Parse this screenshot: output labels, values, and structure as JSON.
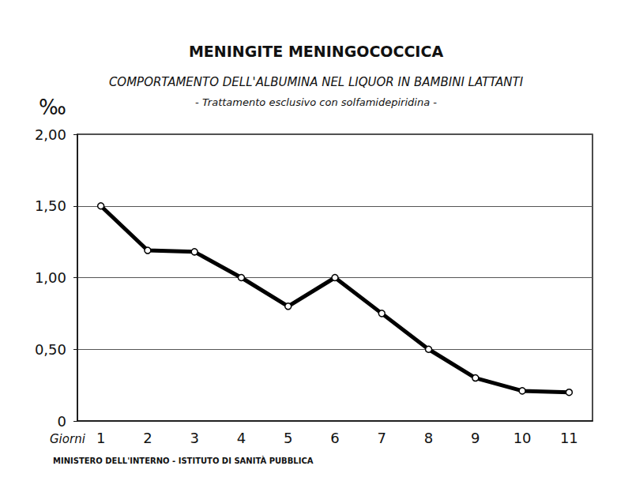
{
  "chart_data": {
    "type": "line",
    "title": "MENINGITE MENINGOCOCCICA",
    "subtitle": [
      "COMPORTAMENTO DELL'ALBUMINA NEL LIQUOR IN BAMBINI LATTANTI",
      "- Trattamento esclusivo con solfamidepiridina -"
    ],
    "x_label": "Giorni",
    "y_label": "‰",
    "annotations": [
      "MINISTERO DELL'INTERNO - ISTITUTO DI SANITÀ PUBBLICA"
    ],
    "categories": [
      "1",
      "2",
      "3",
      "4",
      "5",
      "6",
      "7",
      "8",
      "9",
      "10",
      "11"
    ],
    "values": [
      1.5,
      1.19,
      1.18,
      1.0,
      0.8,
      1.0,
      0.75,
      0.5,
      0.3,
      0.21,
      0.2
    ],
    "color": "#000000",
    "marker": "circle",
    "line_style": "solid",
    "ylim": [
      0,
      2
    ],
    "yticks": [
      0,
      {
        "value": 0.5,
        "label": "0,50"
      },
      {
        "value": 1,
        "label": "1,00"
      },
      {
        "value": 1.5,
        "label": "1,50"
      },
      {
        "value": 2,
        "label": "2,00"
      }
    ],
    "grid": true
  }
}
